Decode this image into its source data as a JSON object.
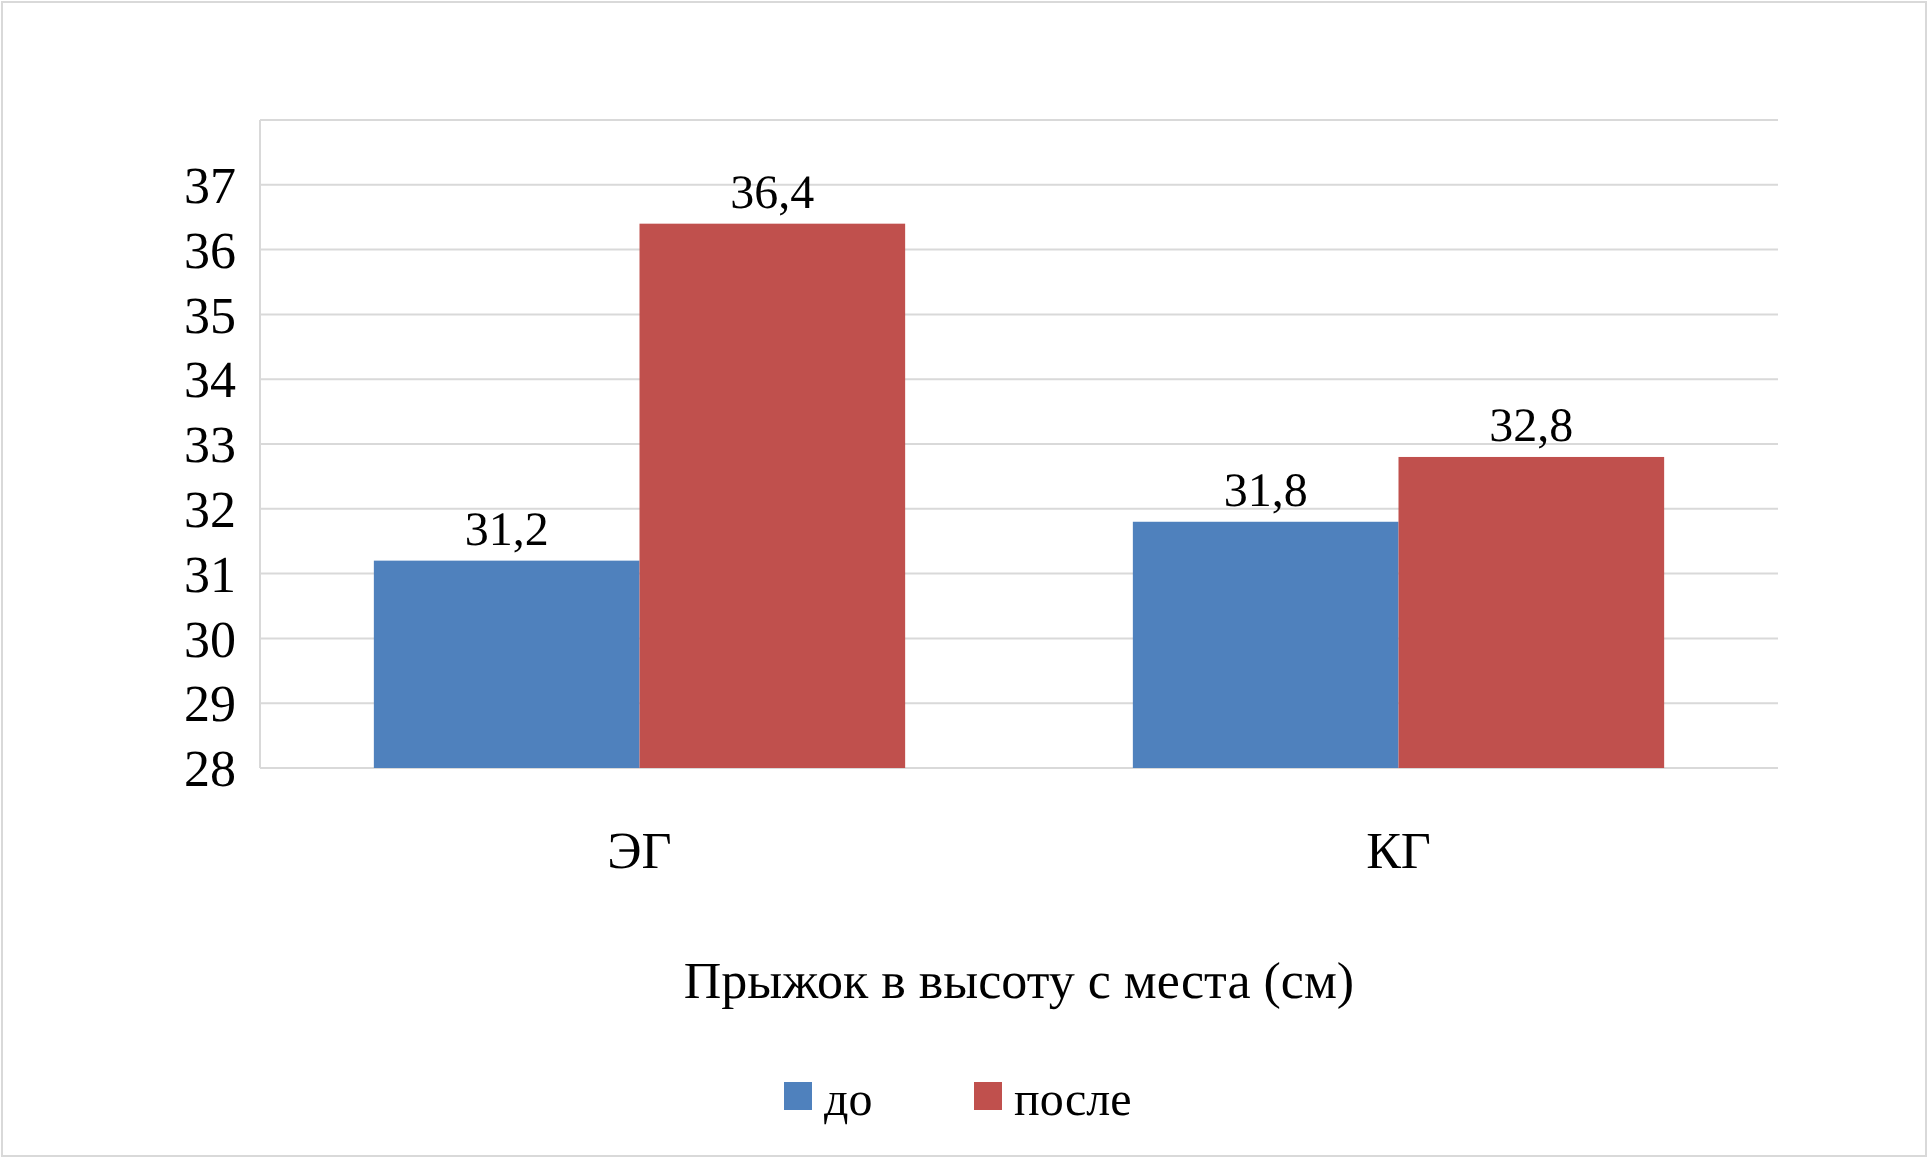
{
  "chart_data": {
    "type": "bar",
    "xlabel": "Прыжок в высоту с места (см)",
    "categories": [
      "ЭГ",
      "КГ"
    ],
    "series": [
      {
        "name": "до",
        "color": "#4f81bd",
        "values": [
          31.2,
          31.8
        ],
        "value_labels": [
          "31,2",
          "31,8"
        ]
      },
      {
        "name": "после",
        "color": "#c0504d",
        "values": [
          36.4,
          32.8
        ],
        "value_labels": [
          "36,4",
          "32,8"
        ]
      }
    ],
    "ylim": [
      28,
      38
    ],
    "yticks": [
      28,
      29,
      30,
      31,
      32,
      33,
      34,
      35,
      36,
      37
    ],
    "grid": "y",
    "legend": "bottom"
  }
}
